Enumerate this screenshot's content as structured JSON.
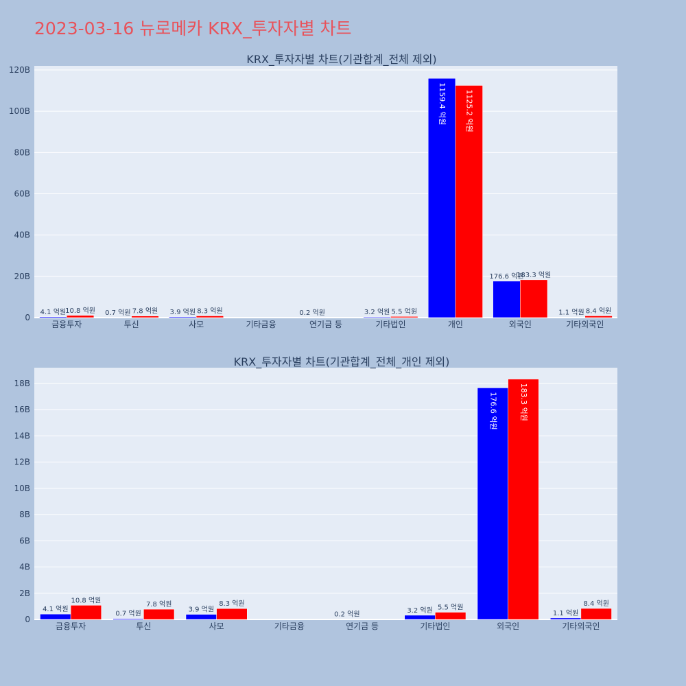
{
  "title": "2023-03-16 뉴로메카 KRX_투자자별 차트",
  "colors": {
    "buy": "#0000ff",
    "sell": "#ff0000",
    "plot_bg": "#e5ecf6",
    "paper_bg": "#b0c4de",
    "title": "#e8525a"
  },
  "chart_data": [
    {
      "type": "bar",
      "title": "KRX_투자자별 차트(기관합계_전체 제외)",
      "categories": [
        "금융투자",
        "투신",
        "사모",
        "기타금융",
        "연기금 등",
        "기타법인",
        "개인",
        "외국인",
        "기타외국인"
      ],
      "series": [
        {
          "values": [
            0.41,
            0.07,
            0.39,
            0,
            0.02,
            0.32,
            115.94,
            17.66,
            0.11
          ],
          "labels": [
            "4.1 억원",
            "0.7 억원",
            "3.9 억원",
            "",
            "0.2 억원",
            "3.2 억원",
            "1159.4 억원",
            "176.6 억원",
            "1.1 억원"
          ]
        },
        {
          "values": [
            1.08,
            0.78,
            0.83,
            0,
            0,
            0.55,
            112.52,
            18.33,
            0.84
          ],
          "labels": [
            "10.8 억원",
            "7.8 억원",
            "8.3 억원",
            "",
            "",
            "5.5 억원",
            "1125.2 억원",
            "183.3 억원",
            "8.4 억원"
          ]
        }
      ],
      "ylim": [
        0,
        122
      ],
      "yticks": [
        0,
        20,
        40,
        60,
        80,
        100,
        120
      ],
      "ytick_labels": [
        "0",
        "20B",
        "40B",
        "60B",
        "80B",
        "100B",
        "120B"
      ],
      "grid": true
    },
    {
      "type": "bar",
      "title": "KRX_투자자별 차트(기관합계_전체_개인 제외)",
      "categories": [
        "금융투자",
        "투신",
        "사모",
        "기타금융",
        "연기금 등",
        "기타법인",
        "외국인",
        "기타외국인"
      ],
      "series": [
        {
          "values": [
            0.41,
            0.07,
            0.39,
            0,
            0.02,
            0.32,
            17.66,
            0.11
          ],
          "labels": [
            "4.1 억원",
            "0.7 억원",
            "3.9 억원",
            "",
            "0.2 억원",
            "3.2 억원",
            "176.6 억원",
            "1.1 억원"
          ]
        },
        {
          "values": [
            1.08,
            0.78,
            0.83,
            0,
            0,
            0.55,
            18.33,
            0.84
          ],
          "labels": [
            "10.8 억원",
            "7.8 억원",
            "8.3 억원",
            "",
            "",
            "5.5 억원",
            "183.3 억원",
            "8.4 억원"
          ]
        }
      ],
      "ylim": [
        0,
        19.2
      ],
      "yticks": [
        0,
        2,
        4,
        6,
        8,
        10,
        12,
        14,
        16,
        18
      ],
      "ytick_labels": [
        "0",
        "2B",
        "4B",
        "6B",
        "8B",
        "10B",
        "12B",
        "14B",
        "16B",
        "18B"
      ],
      "grid": true
    }
  ]
}
